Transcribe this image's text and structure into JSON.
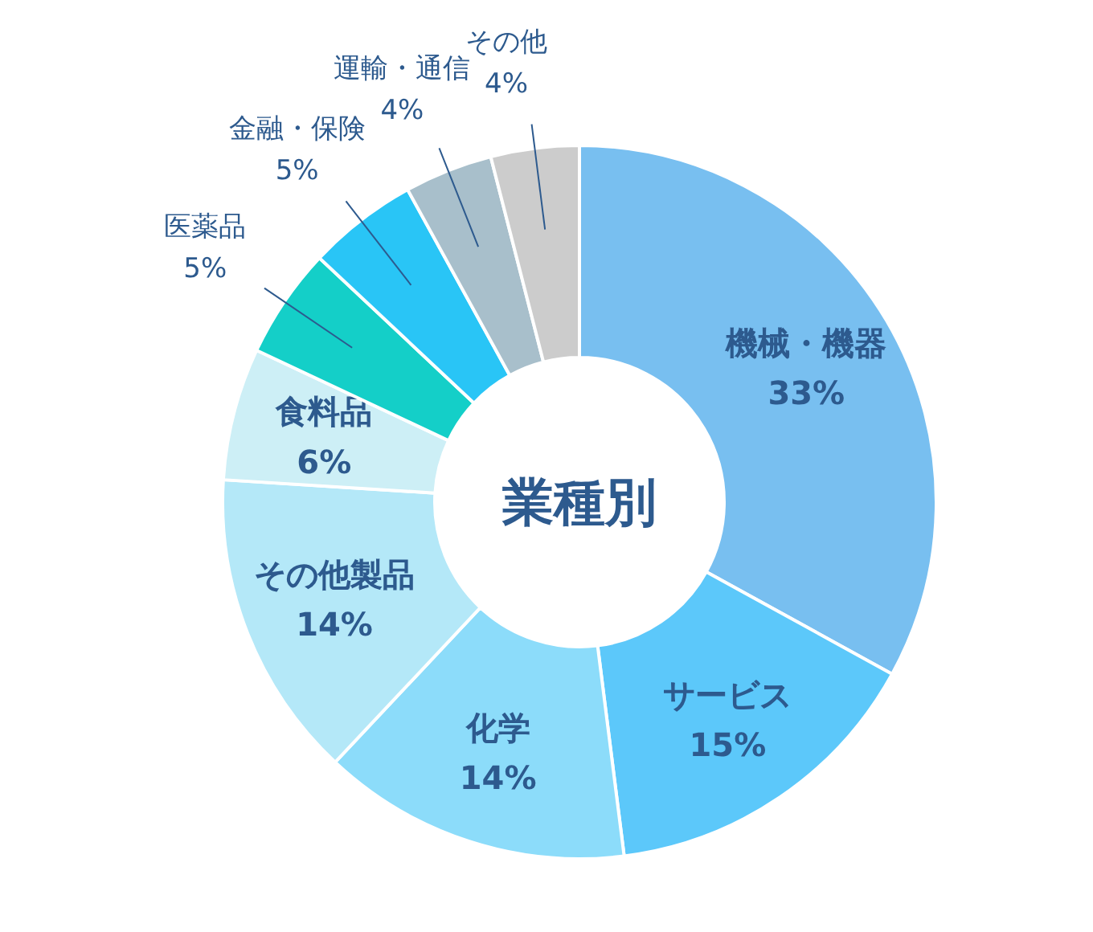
{
  "chart_data": {
    "type": "donut",
    "title": "業種別",
    "categories": [
      "機械・機器",
      "サービス",
      "化学",
      "その他製品",
      "食料品",
      "医薬品",
      "金融・保険",
      "運輸・通信",
      "その他"
    ],
    "values": [
      33,
      15,
      14,
      14,
      6,
      5,
      5,
      4,
      4
    ],
    "colors": [
      "#78bff0",
      "#5cc8fa",
      "#8cdcfa",
      "#b4e8f8",
      "#cdeff6",
      "#14cfc8",
      "#29c5f6",
      "#a8bfcb",
      "#cccccc"
    ],
    "value_labels": [
      "33%",
      "15%",
      "14%",
      "14%",
      "6%",
      "5%",
      "5%",
      "4%",
      "4%"
    ]
  }
}
